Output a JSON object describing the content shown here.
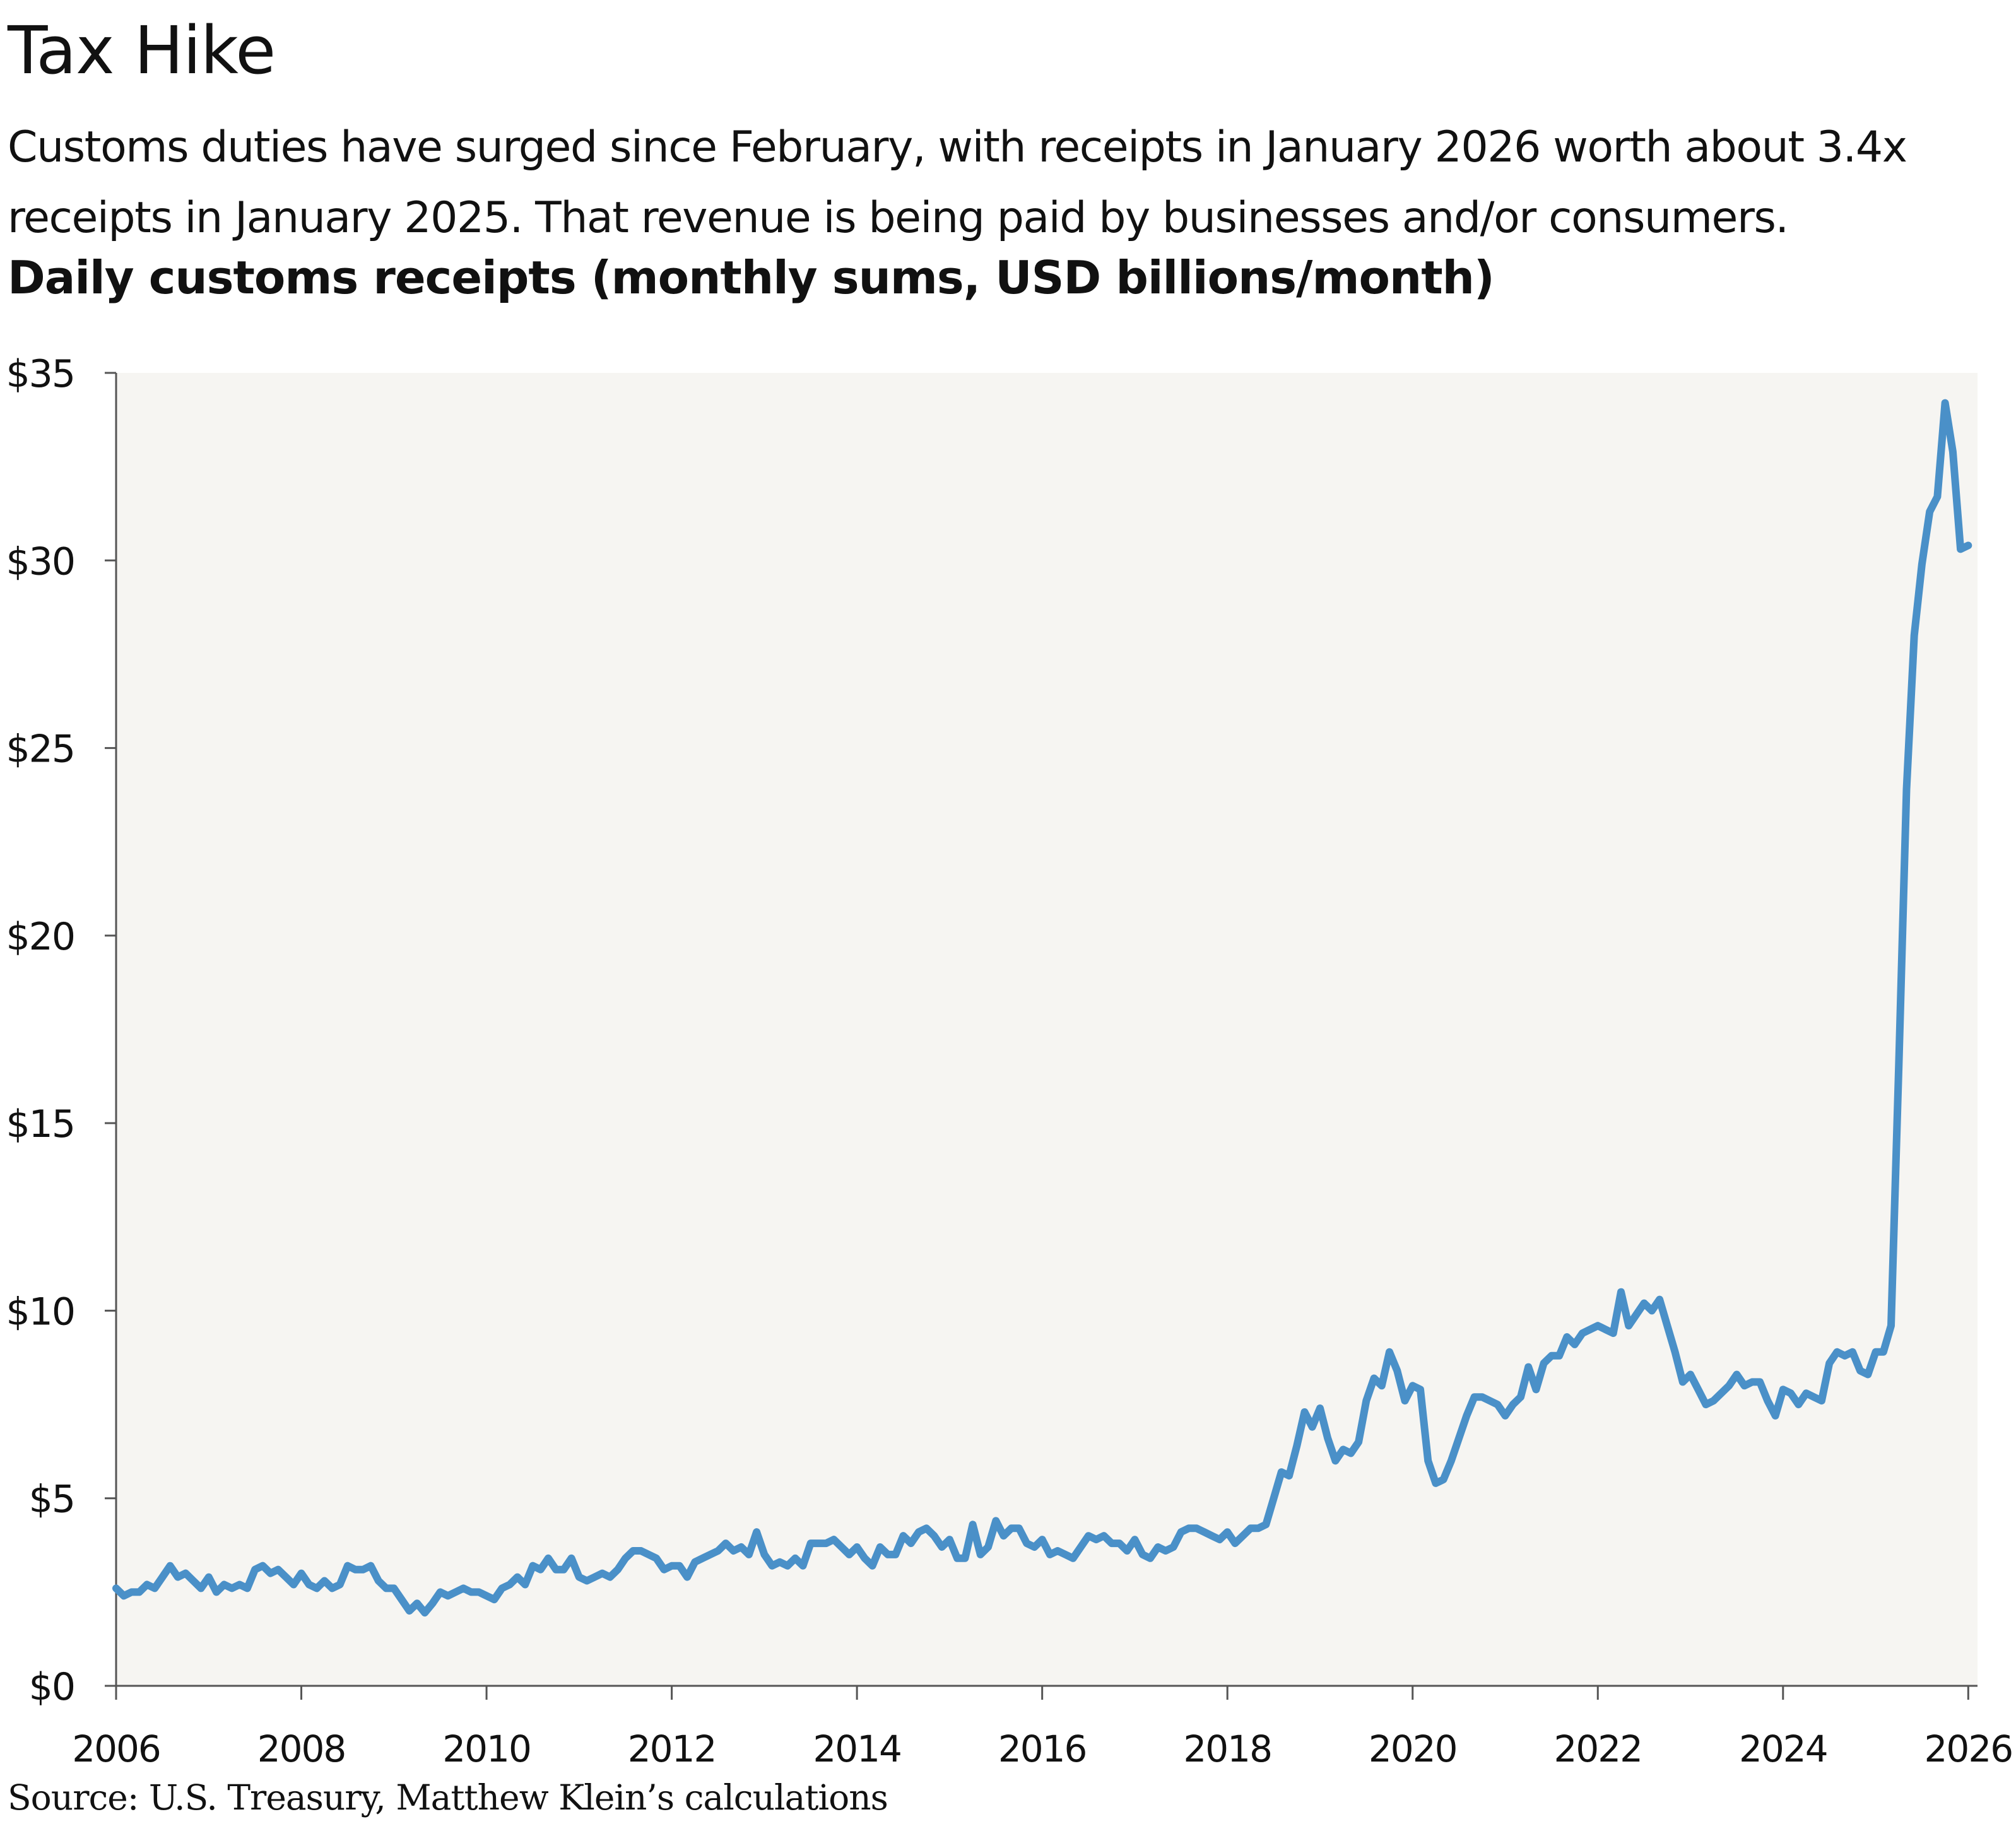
{
  "header": {
    "title": "Tax Hike",
    "subtitle_line1": "Customs duties have surged since February, with receipts in January 2026 worth about 3.4x",
    "subtitle_line2": "receipts in January 2025. That revenue is being paid by businesses and/or consumers.",
    "chart_heading": "Daily customs receipts (monthly sums, USD billions/month)"
  },
  "footer": {
    "source": "Source: U.S. Treasury, Matthew Klein’s calculations"
  },
  "colors": {
    "line": "#4a90c8",
    "plot_background": "#f6f5f2",
    "axis": "#555555",
    "text": "#111111"
  },
  "chart_data": {
    "type": "line",
    "title": "Daily customs receipts (monthly sums, USD billions/month)",
    "xlabel": "",
    "ylabel": "",
    "xlim": [
      2006,
      2026.1
    ],
    "ylim": [
      0,
      35
    ],
    "grid": false,
    "legend": "none",
    "x_ticks": [
      2006,
      2008,
      2010,
      2012,
      2014,
      2016,
      2018,
      2020,
      2022,
      2024,
      2026
    ],
    "x_tick_labels": [
      "2006",
      "2008",
      "2010",
      "2012",
      "2014",
      "2016",
      "2018",
      "2020",
      "2022",
      "2024",
      "2026"
    ],
    "y_ticks": [
      0,
      5,
      10,
      15,
      20,
      25,
      30,
      35
    ],
    "y_tick_labels": [
      "$0",
      "$5",
      "$10",
      "$15",
      "$20",
      "$25",
      "$30",
      "$35"
    ],
    "series": [
      {
        "name": "Customs receipts",
        "start": 2006.0,
        "step_months": 1,
        "values": [
          2.6,
          2.4,
          2.5,
          2.5,
          2.7,
          2.6,
          2.9,
          3.2,
          2.9,
          3.0,
          2.8,
          2.6,
          2.9,
          2.5,
          2.7,
          2.6,
          2.7,
          2.6,
          3.1,
          3.2,
          3.0,
          3.1,
          2.9,
          2.7,
          3.0,
          2.7,
          2.6,
          2.8,
          2.6,
          2.7,
          3.2,
          3.1,
          3.1,
          3.2,
          2.8,
          2.6,
          2.6,
          2.3,
          2.0,
          2.2,
          1.95,
          2.2,
          2.5,
          2.4,
          2.5,
          2.6,
          2.5,
          2.5,
          2.4,
          2.3,
          2.6,
          2.7,
          2.9,
          2.7,
          3.2,
          3.1,
          3.4,
          3.1,
          3.1,
          3.4,
          2.9,
          2.8,
          2.9,
          3.0,
          2.9,
          3.1,
          3.4,
          3.6,
          3.6,
          3.5,
          3.4,
          3.1,
          3.2,
          3.2,
          2.9,
          3.3,
          3.4,
          3.5,
          3.6,
          3.8,
          3.6,
          3.7,
          3.5,
          4.1,
          3.5,
          3.2,
          3.3,
          3.2,
          3.4,
          3.2,
          3.8,
          3.8,
          3.8,
          3.9,
          3.7,
          3.5,
          3.7,
          3.4,
          3.2,
          3.7,
          3.5,
          3.5,
          4.0,
          3.8,
          4.1,
          4.2,
          4.0,
          3.7,
          3.9,
          3.4,
          3.4,
          4.3,
          3.5,
          3.7,
          4.4,
          4.0,
          4.2,
          4.2,
          3.8,
          3.7,
          3.9,
          3.5,
          3.6,
          3.5,
          3.4,
          3.7,
          4.0,
          3.9,
          4.0,
          3.8,
          3.8,
          3.6,
          3.9,
          3.5,
          3.4,
          3.7,
          3.6,
          3.7,
          4.1,
          4.2,
          4.2,
          4.1,
          4.0,
          3.9,
          4.1,
          3.8,
          4.0,
          4.2,
          4.2,
          4.3,
          5.0,
          5.7,
          5.6,
          6.4,
          7.3,
          6.9,
          7.4,
          6.6,
          6.0,
          6.3,
          6.2,
          6.5,
          7.6,
          8.2,
          8.0,
          8.9,
          8.4,
          7.6,
          8.0,
          7.9,
          6.0,
          5.4,
          5.5,
          6.0,
          6.6,
          7.2,
          7.7,
          7.7,
          7.6,
          7.5,
          7.2,
          7.5,
          7.7,
          8.5,
          7.9,
          8.6,
          8.8,
          8.8,
          9.3,
          9.1,
          9.4,
          9.5,
          9.6,
          9.5,
          9.4,
          10.5,
          9.6,
          9.9,
          10.2,
          10.0,
          10.3,
          9.6,
          8.9,
          8.1,
          8.3,
          7.9,
          7.5,
          7.6,
          7.8,
          8.0,
          8.3,
          8.0,
          8.1,
          8.1,
          7.6,
          7.2,
          7.9,
          7.8,
          7.5,
          7.8,
          7.7,
          7.6,
          8.6,
          8.9,
          8.8,
          8.9,
          8.4,
          8.3,
          8.9,
          8.9,
          9.6,
          16.5,
          23.9,
          28.0,
          29.9,
          31.3,
          31.7,
          34.2,
          32.9,
          30.3,
          30.4
        ]
      }
    ]
  }
}
